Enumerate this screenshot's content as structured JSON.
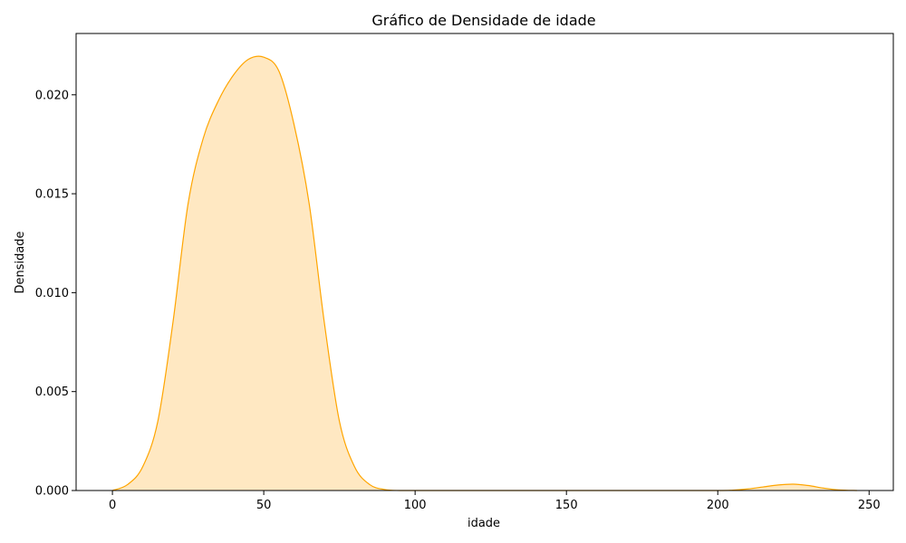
{
  "chart_data": {
    "type": "area",
    "title": "Gráfico de Densidade de idade",
    "xlabel": "idade",
    "ylabel": "Densidade",
    "xlim": [
      -12,
      258
    ],
    "ylim": [
      0,
      0.0231
    ],
    "xticks": [
      0,
      50,
      100,
      150,
      200,
      250
    ],
    "yticks": [
      0.0,
      0.005,
      0.01,
      0.015,
      0.02
    ],
    "xtick_labels": [
      "0",
      "50",
      "100",
      "150",
      "200",
      "250"
    ],
    "ytick_labels": [
      "0.000",
      "0.005",
      "0.010",
      "0.015",
      "0.020"
    ],
    "grid": false,
    "series": [
      {
        "x": [
          0,
          5,
          10,
          15,
          20,
          25,
          30,
          35,
          40,
          45,
          50,
          55,
          60,
          65,
          70,
          75,
          80,
          85,
          90,
          95,
          100,
          110,
          120,
          140,
          160,
          180,
          200,
          205,
          210,
          215,
          220,
          225,
          230,
          235,
          240,
          246
        ],
        "y": [
          0.0,
          0.0003,
          0.0012,
          0.0035,
          0.0085,
          0.0145,
          0.0178,
          0.0197,
          0.021,
          0.0218,
          0.0219,
          0.0212,
          0.0185,
          0.0145,
          0.0085,
          0.0035,
          0.0012,
          0.0003,
          5e-05,
          0.0,
          0.0,
          0.0,
          0.0,
          0.0,
          0.0,
          0.0,
          0.0,
          2e-05,
          8e-05,
          0.00018,
          0.00028,
          0.00032,
          0.00025,
          0.00012,
          3e-05,
          0.0
        ]
      }
    ],
    "colors": {
      "line": "#ffa500",
      "fill": "#ffe8c2"
    }
  }
}
